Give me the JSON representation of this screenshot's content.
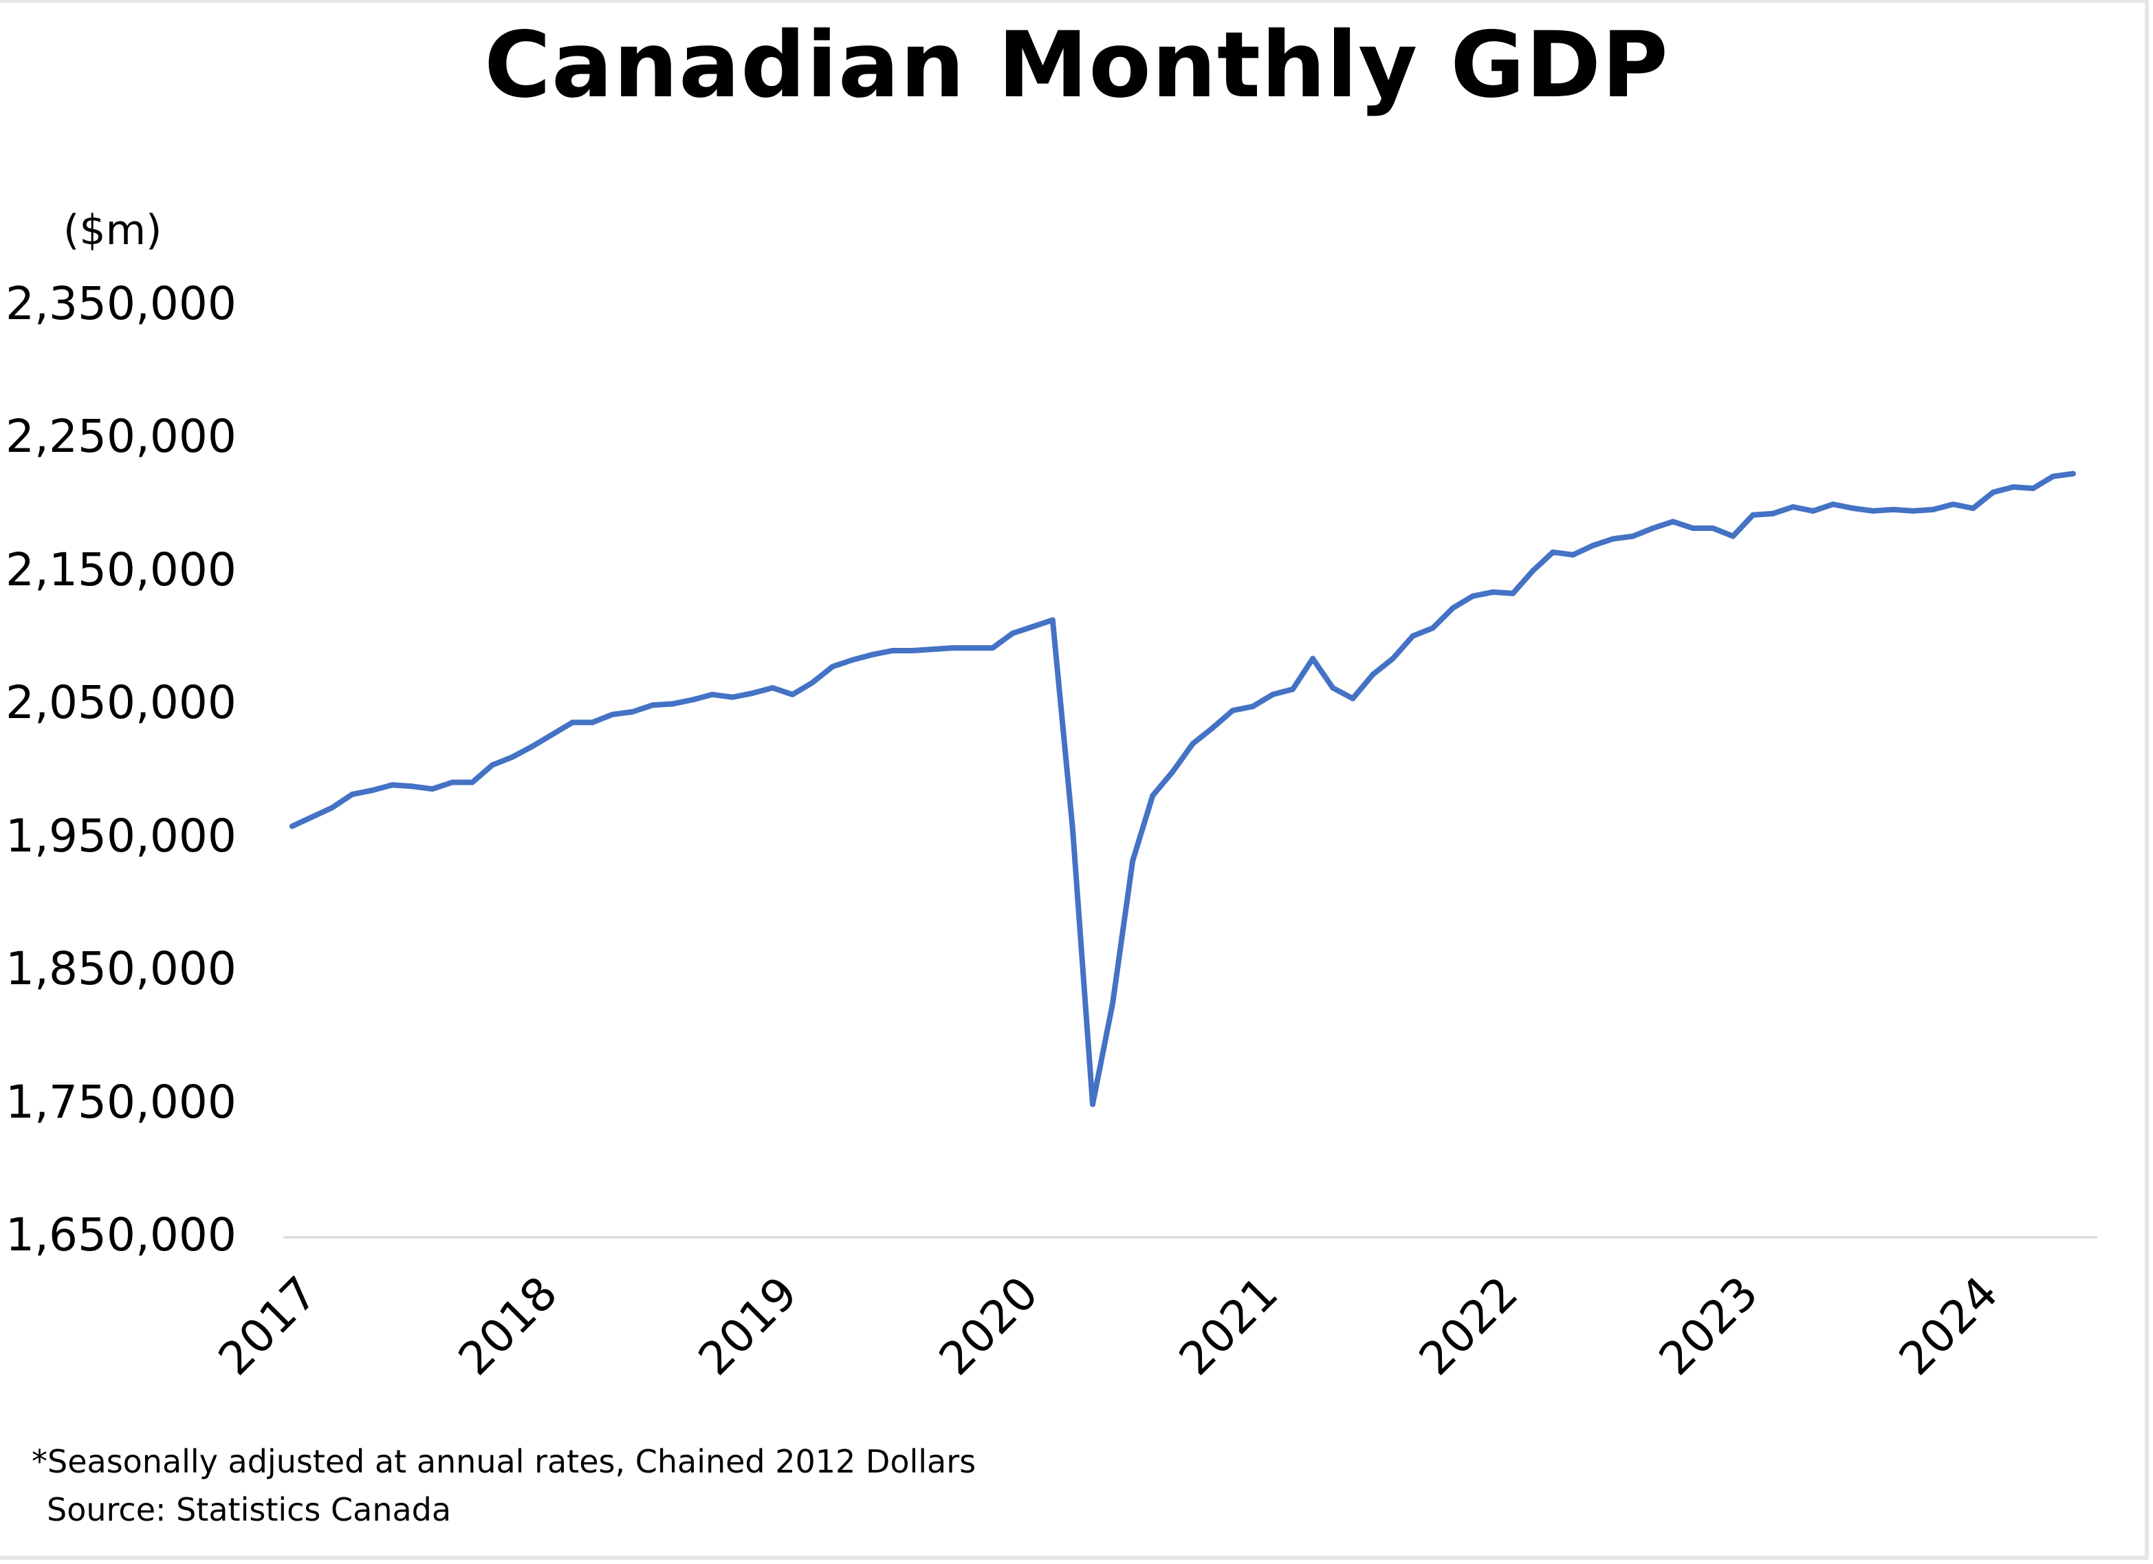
{
  "chart_data": {
    "type": "line",
    "title": "Canadian Monthly GDP",
    "ylabel": "($m)",
    "xlabel": "",
    "ylim": [
      1650000,
      2350000
    ],
    "yticks": [
      1650000,
      1750000,
      1850000,
      1950000,
      2050000,
      2150000,
      2250000,
      2350000
    ],
    "ytick_labels": [
      "1,650,000",
      "1,750,000",
      "1,850,000",
      "1,950,000",
      "2,050,000",
      "2,150,000",
      "2,250,000",
      "2,350,000"
    ],
    "xtick_labels": [
      "2017",
      "2018",
      "2019",
      "2020",
      "2021",
      "2022",
      "2023",
      "2024"
    ],
    "x_start": "2017-01",
    "x_end": "2024-06",
    "frequency": "monthly",
    "grid": false,
    "legend": "none",
    "series": [
      {
        "name": "Canadian Monthly GDP",
        "color": "#4472C4",
        "values": [
          1959000,
          1966000,
          1973000,
          1983000,
          1986000,
          1990000,
          1989000,
          1987000,
          1992000,
          1992000,
          2005000,
          2011000,
          2019000,
          2028000,
          2037000,
          2037000,
          2043000,
          2045000,
          2050000,
          2051000,
          2054000,
          2058000,
          2056000,
          2059000,
          2063000,
          2058000,
          2067000,
          2079000,
          2084000,
          2088000,
          2091000,
          2091000,
          2092000,
          2093000,
          2093000,
          2093000,
          2104000,
          2109000,
          2114000,
          1957000,
          1750000,
          1826000,
          1933000,
          1982000,
          2000000,
          2021000,
          2033000,
          2046000,
          2049000,
          2058000,
          2062000,
          2085000,
          2063000,
          2055000,
          2073000,
          2085000,
          2102000,
          2108000,
          2123000,
          2132000,
          2135000,
          2134000,
          2151000,
          2165000,
          2163000,
          2170000,
          2175000,
          2177000,
          2183000,
          2188000,
          2183000,
          2183000,
          2177000,
          2193000,
          2194000,
          2199000,
          2196000,
          2201000,
          2198000,
          2196000,
          2197000,
          2196000,
          2197000,
          2201000,
          2198000,
          2210000,
          2214000,
          2213000,
          2222000,
          2224000
        ]
      }
    ]
  },
  "footnote": "*Seasonally adjusted at annual rates, Chained 2012 Dollars",
  "source": "Source: Statistics Canada"
}
